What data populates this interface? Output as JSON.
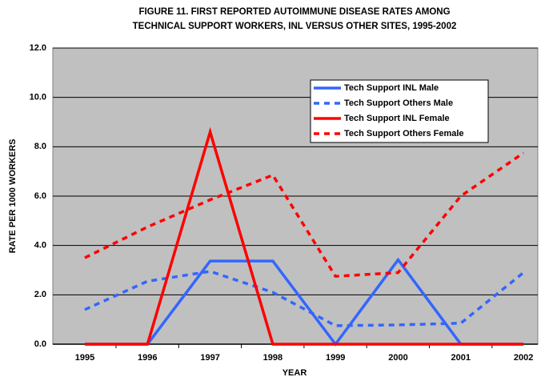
{
  "chart_data": {
    "type": "line",
    "title": [
      "FIGURE 11.  FIRST REPORTED AUTOIMMUNE DISEASE RATES AMONG",
      "TECHNICAL SUPPORT WORKERS, INL VERSUS OTHER SITES, 1995-2002"
    ],
    "x_label": "YEAR",
    "y_label": "RATE PER 1000 WORKERS",
    "categories": [
      "1995",
      "1996",
      "1997",
      "1998",
      "1999",
      "2000",
      "2001",
      "2002"
    ],
    "series": [
      {
        "name": "Tech Support INL Male",
        "color": "#3366ff",
        "dash": false,
        "values": [
          0,
          0,
          3.37,
          3.37,
          0,
          3.42,
          0,
          0
        ]
      },
      {
        "name": "Tech Support Others Male",
        "color": "#3366ff",
        "dash": true,
        "values": [
          1.4,
          2.55,
          2.95,
          2.1,
          0.75,
          0.78,
          0.85,
          2.9
        ]
      },
      {
        "name": "Tech Support INL Female",
        "color": "#ff0000",
        "dash": false,
        "values": [
          0,
          0,
          8.6,
          0,
          0,
          0,
          0,
          0
        ]
      },
      {
        "name": "Tech Support Others Female",
        "color": "#ff0000",
        "dash": true,
        "values": [
          3.5,
          4.75,
          5.85,
          6.85,
          2.75,
          2.9,
          6.0,
          7.75
        ]
      }
    ],
    "ylim": [
      0,
      12
    ],
    "yticks": [
      {
        "value": 0,
        "label": "0.0"
      },
      {
        "value": 2,
        "label": "2.0"
      },
      {
        "value": 4,
        "label": "4.0"
      },
      {
        "value": 6,
        "label": "6.0"
      },
      {
        "value": 8,
        "label": "8.0"
      },
      {
        "value": 10,
        "label": "10.0"
      },
      {
        "value": 12,
        "label": "12.0"
      }
    ],
    "grid": true
  }
}
